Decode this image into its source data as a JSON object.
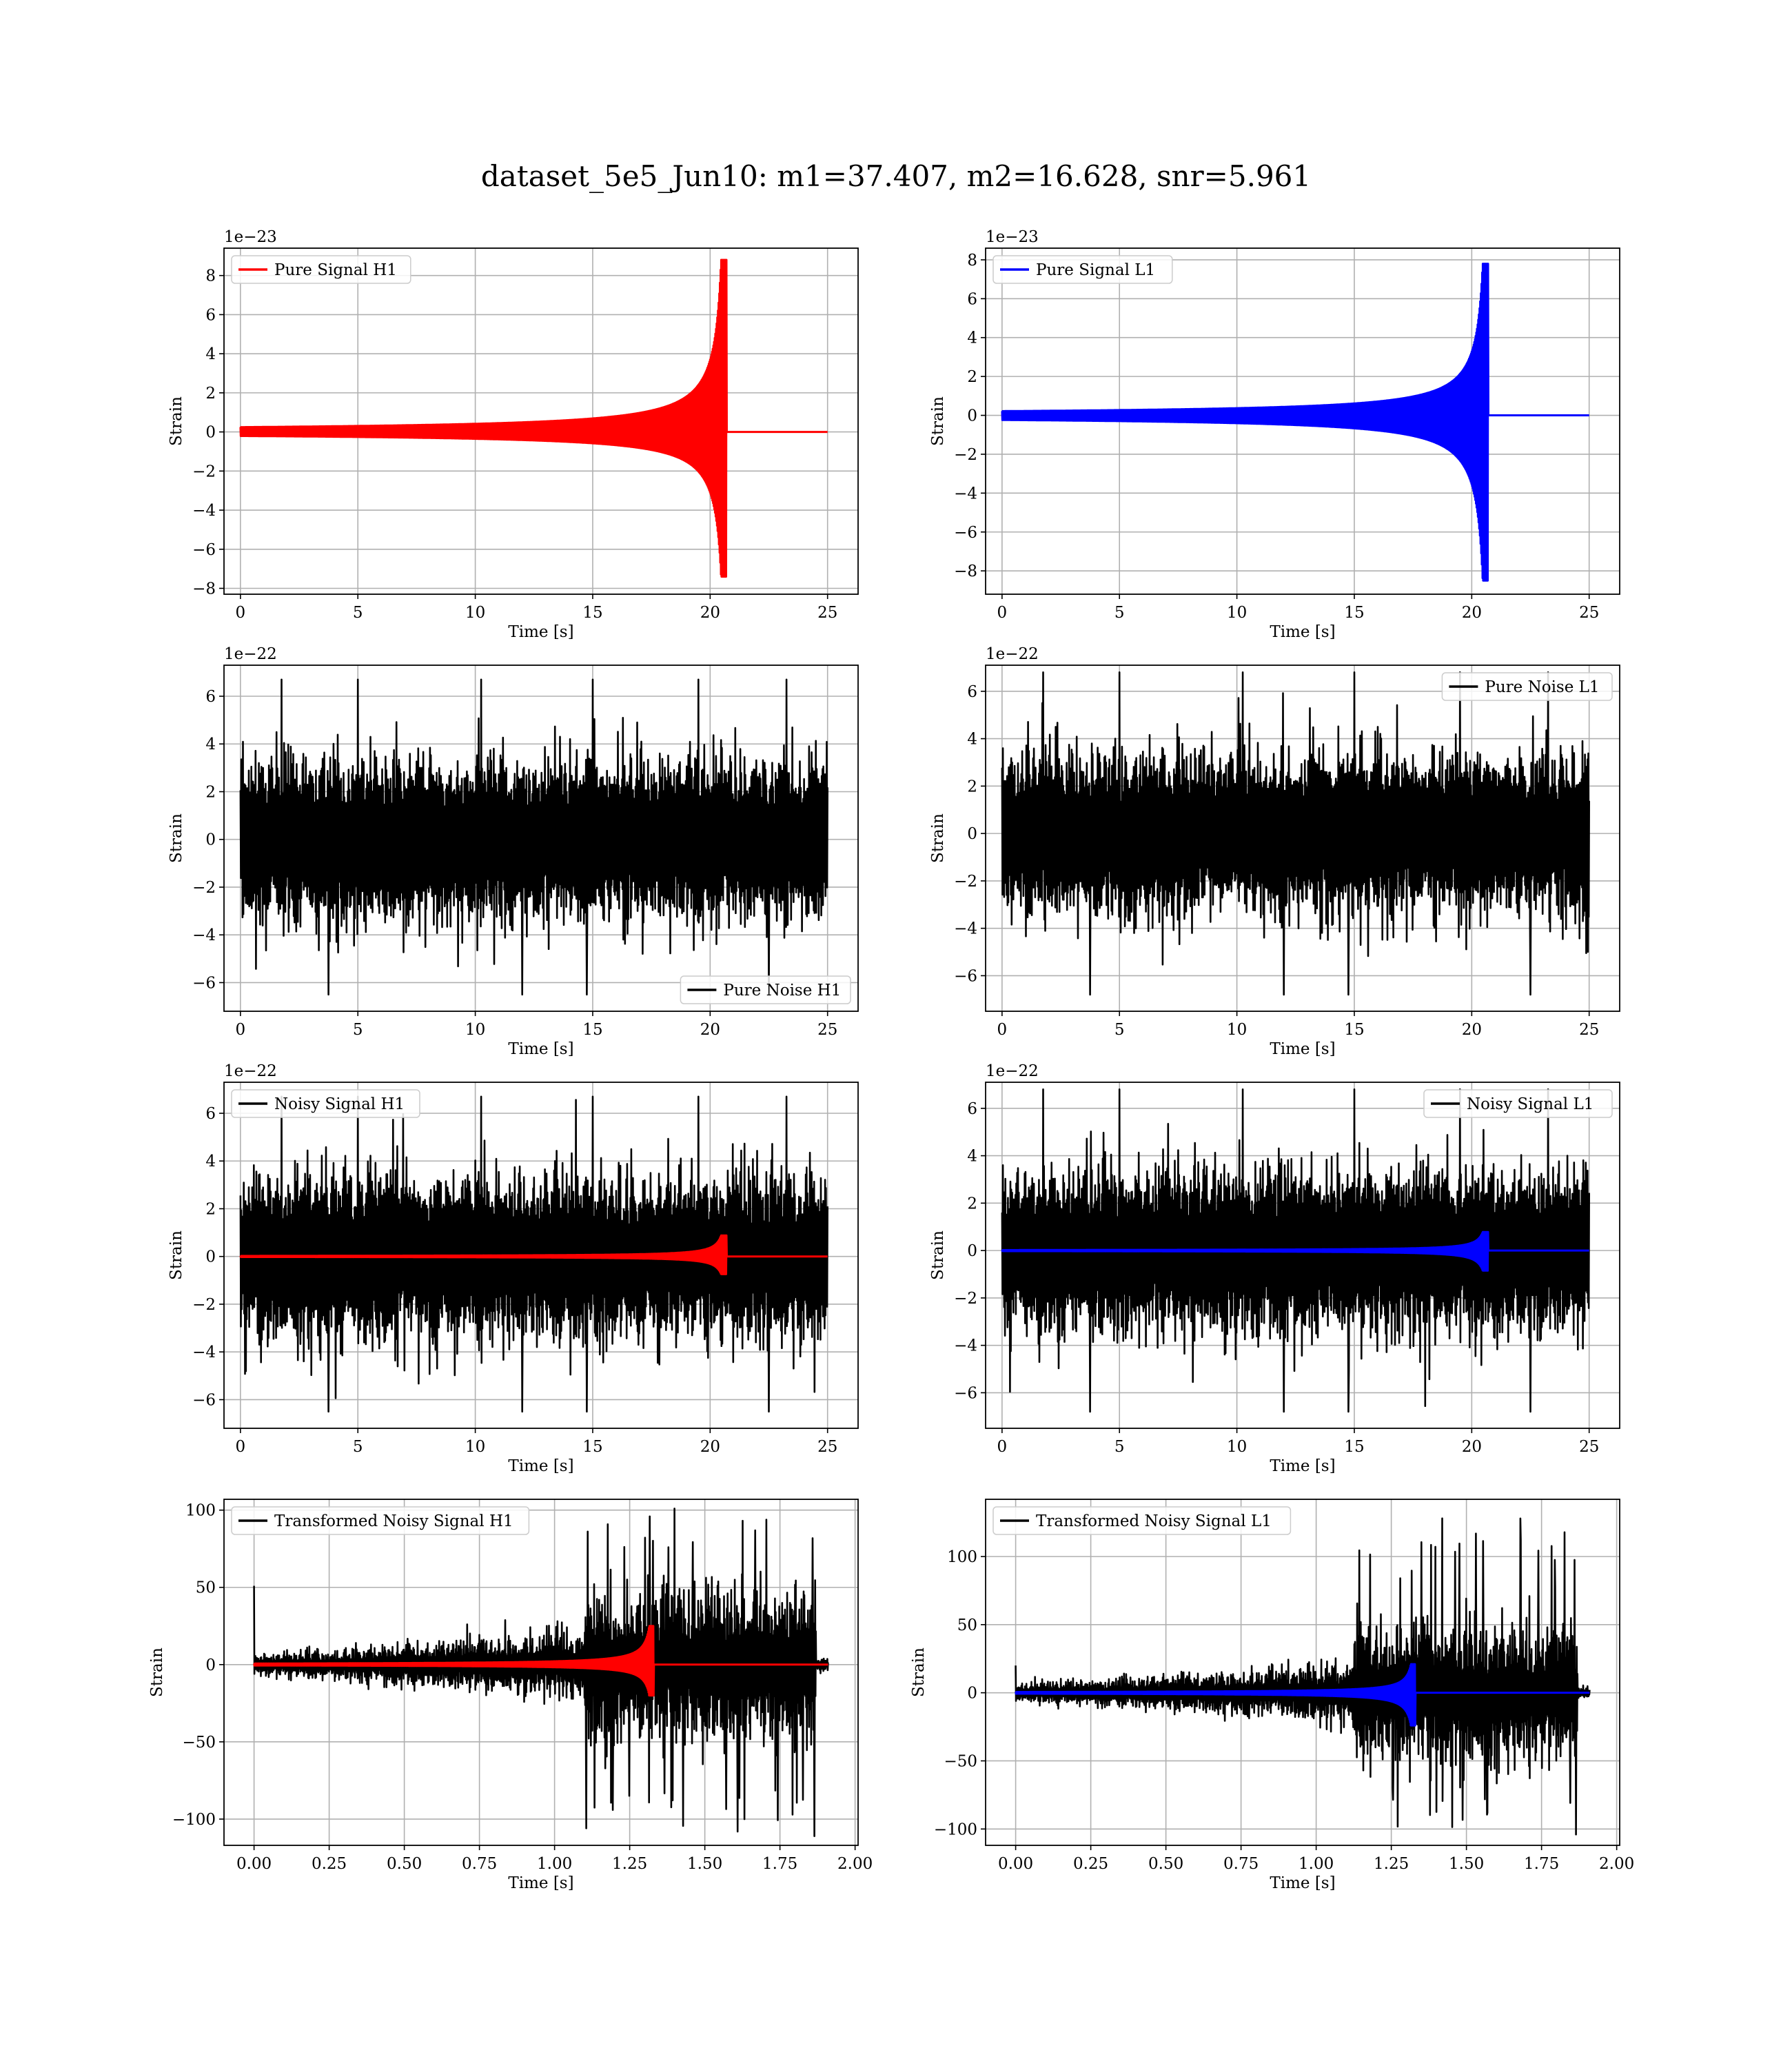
{
  "figure": {
    "title": "dataset_5e5_Jun10: m1=37.407, m2=16.628, snr=5.961"
  },
  "colors": {
    "h1_signal": "#ff0000",
    "l1_signal": "#0000ff",
    "noise": "#000000",
    "grid": "#b0b0b0"
  },
  "chart_data": [
    {
      "type": "line",
      "legend": "Pure Signal H1",
      "legend_position": "upper left",
      "xlabel": "Time [s]",
      "ylabel": "Strain",
      "offset_text": "1e−23",
      "xlim": [
        -0.7,
        26.3
      ],
      "ylim": [
        -8.3,
        9.4
      ],
      "xticks": [
        0,
        5,
        10,
        15,
        20,
        25
      ],
      "yticks": [
        -8,
        -6,
        -4,
        -2,
        0,
        2,
        4,
        6,
        8
      ],
      "grid": true,
      "series": [
        {
          "kind": "chirp",
          "color": "red",
          "x_start": 0,
          "x_end": 25,
          "merger_time": 20.7,
          "peak_max": 8.8,
          "peak_min": -7.4
        }
      ]
    },
    {
      "type": "line",
      "legend": "Pure Signal L1",
      "legend_position": "upper left",
      "xlabel": "Time [s]",
      "ylabel": "Strain",
      "offset_text": "1e−23",
      "xlim": [
        -0.7,
        26.3
      ],
      "ylim": [
        -9.2,
        8.6
      ],
      "xticks": [
        0,
        5,
        10,
        15,
        20,
        25
      ],
      "yticks": [
        -8,
        -6,
        -4,
        -2,
        0,
        2,
        4,
        6,
        8
      ],
      "grid": true,
      "series": [
        {
          "kind": "chirp",
          "color": "blue",
          "x_start": 0,
          "x_end": 25,
          "merger_time": 20.7,
          "peak_max": 7.8,
          "peak_min": -8.5
        }
      ]
    },
    {
      "type": "line",
      "legend": "Pure Noise H1",
      "legend_position": "lower right",
      "xlabel": "Time [s]",
      "ylabel": "Strain",
      "offset_text": "1e−22",
      "xlim": [
        -0.7,
        26.3
      ],
      "ylim": [
        -7.2,
        7.3
      ],
      "xticks": [
        0,
        5,
        10,
        15,
        20,
        25
      ],
      "yticks": [
        -6,
        -4,
        -2,
        0,
        2,
        4,
        6
      ],
      "grid": true,
      "series": [
        {
          "kind": "noise",
          "color": "black",
          "x_start": 0,
          "x_end": 25,
          "max": 6.7,
          "min": -6.5
        }
      ]
    },
    {
      "type": "line",
      "legend": "Pure Noise L1",
      "legend_position": "upper right",
      "xlabel": "Time [s]",
      "ylabel": "Strain",
      "offset_text": "1e−22",
      "xlim": [
        -0.7,
        26.3
      ],
      "ylim": [
        -7.5,
        7.1
      ],
      "xticks": [
        0,
        5,
        10,
        15,
        20,
        25
      ],
      "yticks": [
        -6,
        -4,
        -2,
        0,
        2,
        4,
        6
      ],
      "grid": true,
      "series": [
        {
          "kind": "noise",
          "color": "black",
          "x_start": 0,
          "x_end": 25,
          "max": 6.8,
          "min": -6.8
        }
      ]
    },
    {
      "type": "line",
      "legend": "Noisy Signal H1",
      "legend_position": "upper left",
      "xlabel": "Time [s]",
      "ylabel": "Strain",
      "offset_text": "1e−22",
      "xlim": [
        -0.7,
        26.3
      ],
      "ylim": [
        -7.2,
        7.3
      ],
      "xticks": [
        0,
        5,
        10,
        15,
        20,
        25
      ],
      "yticks": [
        -6,
        -4,
        -2,
        0,
        2,
        4,
        6
      ],
      "grid": true,
      "series": [
        {
          "kind": "noise",
          "color": "black",
          "x_start": 0,
          "x_end": 25,
          "max": 6.7,
          "min": -6.5
        },
        {
          "kind": "chirp",
          "color": "red",
          "x_start": 0,
          "x_end": 25,
          "merger_time": 20.7,
          "peak_max": 0.88,
          "peak_min": -0.74
        }
      ]
    },
    {
      "type": "line",
      "legend": "Noisy Signal L1",
      "legend_position": "upper right",
      "xlabel": "Time [s]",
      "ylabel": "Strain",
      "offset_text": "1e−22",
      "xlim": [
        -0.7,
        26.3
      ],
      "ylim": [
        -7.5,
        7.1
      ],
      "xticks": [
        0,
        5,
        10,
        15,
        20,
        25
      ],
      "yticks": [
        -6,
        -4,
        -2,
        0,
        2,
        4,
        6
      ],
      "grid": true,
      "series": [
        {
          "kind": "noise",
          "color": "black",
          "x_start": 0,
          "x_end": 25,
          "max": 6.8,
          "min": -6.8
        },
        {
          "kind": "chirp",
          "color": "blue",
          "x_start": 0,
          "x_end": 25,
          "merger_time": 20.7,
          "peak_max": 0.78,
          "peak_min": -0.85
        }
      ]
    },
    {
      "type": "line",
      "legend": "Transformed Noisy Signal H1",
      "legend_position": "upper left",
      "xlabel": "Time [s]",
      "ylabel": "Strain",
      "offset_text": "",
      "xlim": [
        -0.1,
        2.01
      ],
      "ylim": [
        -117,
        107
      ],
      "xticks": [
        0,
        0.25,
        0.5,
        0.75,
        1.0,
        1.25,
        1.5,
        1.75,
        2.0
      ],
      "xtick_labels": [
        "0.00",
        "0.25",
        "0.50",
        "0.75",
        "1.00",
        "1.25",
        "1.50",
        "1.75",
        "2.00"
      ],
      "yticks": [
        -100,
        -50,
        0,
        50,
        100
      ],
      "grid": true,
      "series": [
        {
          "kind": "transformed",
          "color": "black",
          "x_start": 0,
          "x_end": 1.91,
          "burst_start": 1.1,
          "burst_end": 1.87,
          "max": 101,
          "min": -111,
          "early_spike": 51
        },
        {
          "kind": "chirp",
          "color": "red",
          "x_start": 0,
          "x_end": 1.91,
          "merger_time": 1.33,
          "peak_max": 25,
          "peak_min": -20
        }
      ]
    },
    {
      "type": "line",
      "legend": "Transformed Noisy Signal L1",
      "legend_position": "upper left",
      "xlabel": "Time [s]",
      "ylabel": "Strain",
      "offset_text": "",
      "xlim": [
        -0.1,
        2.01
      ],
      "ylim": [
        -112,
        142
      ],
      "xticks": [
        0,
        0.25,
        0.5,
        0.75,
        1.0,
        1.25,
        1.5,
        1.75,
        2.0
      ],
      "xtick_labels": [
        "0.00",
        "0.25",
        "0.50",
        "0.75",
        "1.00",
        "1.25",
        "1.50",
        "1.75",
        "2.00"
      ],
      "yticks": [
        -100,
        -50,
        0,
        50,
        100
      ],
      "grid": true,
      "series": [
        {
          "kind": "transformed",
          "color": "black",
          "x_start": 0,
          "x_end": 1.91,
          "burst_start": 1.12,
          "burst_end": 1.87,
          "max": 128,
          "min": -104,
          "early_spike": 20
        },
        {
          "kind": "chirp",
          "color": "blue",
          "x_start": 0,
          "x_end": 1.91,
          "merger_time": 1.33,
          "peak_max": 21,
          "peak_min": -24
        }
      ]
    }
  ]
}
